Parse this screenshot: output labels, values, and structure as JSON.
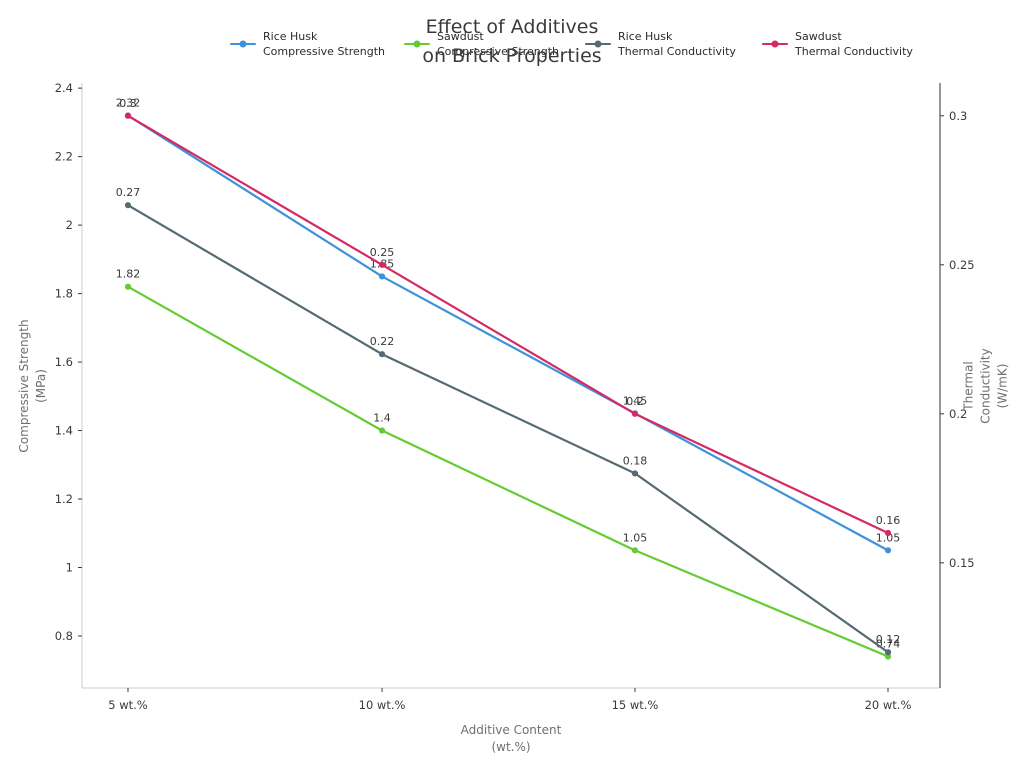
{
  "chart_data": {
    "type": "line",
    "title": "Effect of Additives\non Brick Properties",
    "x_categories": [
      "5 wt.%",
      "10 wt.%",
      "15 wt.%",
      "20 wt.%"
    ],
    "xlabel": "Additive Content\n(wt.%)",
    "grid": false,
    "legend_position": "top",
    "annotation_color": "#3a3a3a",
    "axes": {
      "left": {
        "label": "Compressive Strength\n(MPa)",
        "ticks": [
          0.8,
          1.0,
          1.2,
          1.4,
          1.6,
          1.8,
          2.0,
          2.2,
          2.4
        ],
        "tick_labels": [
          "0.8",
          "1",
          "1.2",
          "1.4",
          "1.6",
          "1.8",
          "2",
          "2.2",
          "2.4"
        ],
        "range": [
          0.648,
          2.415
        ]
      },
      "right": {
        "label": "Thermal Conductivity\n(W/mK)",
        "ticks": [
          0.15,
          0.2,
          0.25,
          0.3
        ],
        "tick_labels": [
          "0.15",
          "0.2",
          "0.25",
          "0.3"
        ],
        "range": [
          0.108,
          0.311
        ]
      }
    },
    "series": [
      {
        "name": "Rice Husk\nCompressive Strength",
        "axis": "left",
        "color": "#3e92da",
        "values": [
          2.32,
          1.85,
          1.45,
          1.05
        ],
        "labels": [
          "2.32",
          "1.85",
          "1.45",
          "1.05"
        ]
      },
      {
        "name": "Sawdust\nCompressive Strength",
        "axis": "left",
        "color": "#64cb31",
        "values": [
          1.82,
          1.4,
          1.05,
          0.74
        ],
        "labels": [
          "1.82",
          "1.4",
          "1.05",
          "0.74"
        ]
      },
      {
        "name": "Rice Husk\nThermal Conductivity",
        "axis": "right",
        "color": "#566a72",
        "values": [
          0.27,
          0.22,
          0.18,
          0.12
        ],
        "labels": [
          "0.27",
          "0.22",
          "0.18",
          "0.12"
        ]
      },
      {
        "name": "Sawdust\nThermal Conductivity",
        "axis": "right",
        "color": "#d62963",
        "values": [
          0.3,
          0.25,
          0.2,
          0.16
        ],
        "labels": [
          "0.3",
          "0.25",
          "0.2",
          "0.16"
        ]
      }
    ]
  }
}
